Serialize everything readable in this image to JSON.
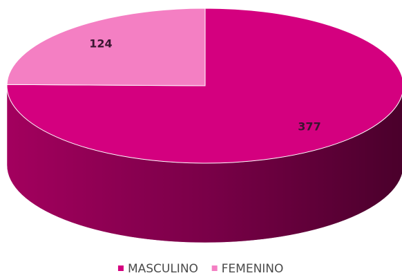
{
  "chart_data": {
    "type": "pie",
    "categories": [
      "MASCULINO",
      "FEMENINO"
    ],
    "values": [
      377,
      124
    ],
    "colors": [
      "#d4007f",
      "#f47fc3"
    ],
    "legend": "bottom"
  }
}
